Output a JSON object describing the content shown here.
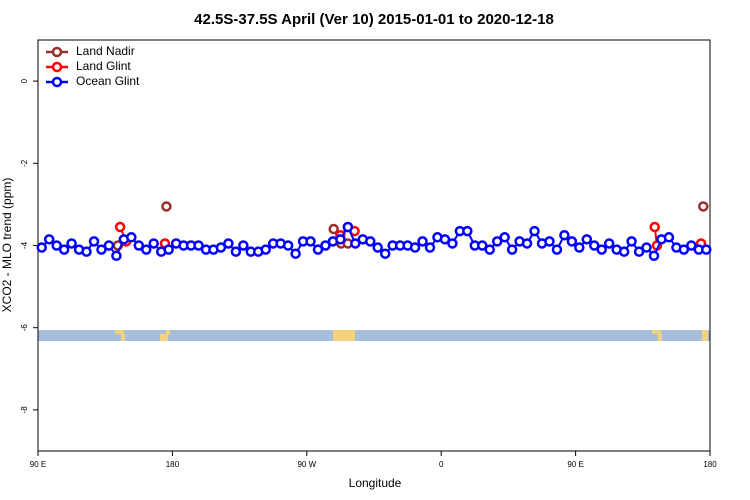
{
  "chart_data": {
    "type": "line",
    "title": "42.5S-37.5S April (Ver 10)   2015-01-01 to 2020-12-18",
    "x_label": "Longitude",
    "y_label": "XCO2 - MLO trend (ppm)",
    "xlim": [
      90,
      540
    ],
    "ylim": [
      -9,
      1
    ],
    "xticks": [
      {
        "value": 90,
        "label": "90 E"
      },
      {
        "value": 180,
        "label": "180"
      },
      {
        "value": 270,
        "label": "90 W"
      },
      {
        "value": 360,
        "label": "0"
      },
      {
        "value": 450,
        "label": "90 E"
      },
      {
        "value": 540,
        "label": "180"
      }
    ],
    "yticks": [
      0,
      -2,
      -4,
      -6,
      -8
    ],
    "legend": "top-left",
    "series": [
      {
        "name": "Land Nadir",
        "color": "#9b2d2d",
        "x": [
          143.5,
          176,
          288,
          293,
          297.5,
          535.5
        ],
        "values": [
          -4.0,
          -3.05,
          -3.6,
          -3.95,
          -3.95,
          -3.05
        ]
      },
      {
        "name": "Land Glint",
        "color": "#ff0000",
        "x": [
          145,
          149,
          175,
          292.5,
          297.5,
          302,
          503,
          504.5,
          534
        ],
        "values": [
          -3.55,
          -3.9,
          -3.95,
          -3.75,
          -3.55,
          -3.65,
          -3.55,
          -4.0,
          -3.95
        ]
      },
      {
        "name": "Ocean Glint",
        "color": "#0000ff",
        "x": [
          92.5,
          97.5,
          102.5,
          107.5,
          112.5,
          117.5,
          122.5,
          127.5,
          132.5,
          137.5,
          142.5,
          147.5,
          152.5,
          157.5,
          162.5,
          167.5,
          172.5,
          177.5,
          182.5,
          187.5,
          192.5,
          197.5,
          202.5,
          207.5,
          212.5,
          217.5,
          222.5,
          227.5,
          232.5,
          237.5,
          242.5,
          247.5,
          252.5,
          257.5,
          262.5,
          267.5,
          272.5,
          277.5,
          282.5,
          287.5,
          292.5,
          297.5,
          302.5,
          307.5,
          312.5,
          317.5,
          322.5,
          327.5,
          332.5,
          337.5,
          342.5,
          347.5,
          352.5,
          357.5,
          362.5,
          367.5,
          372.5,
          377.5,
          382.5,
          387.5,
          392.5,
          397.5,
          402.5,
          407.5,
          412.5,
          417.5,
          422.5,
          427.5,
          432.5,
          437.5,
          442.5,
          447.5,
          452.5,
          457.5,
          462.5,
          467.5,
          472.5,
          477.5,
          482.5,
          487.5,
          492.5,
          497.5,
          502.5,
          507.5,
          512.5,
          517.5,
          522.5,
          527.5,
          532.5,
          537.5
        ],
        "values": [
          -4.05,
          -3.85,
          -4.0,
          -4.1,
          -3.95,
          -4.1,
          -4.15,
          -3.9,
          -4.1,
          -4.0,
          -4.25,
          -3.85,
          -3.8,
          -4.0,
          -4.1,
          -3.95,
          -4.15,
          -4.1,
          -3.95,
          -4.0,
          -4.0,
          -4.0,
          -4.1,
          -4.1,
          -4.05,
          -3.95,
          -4.15,
          -4.0,
          -4.15,
          -4.15,
          -4.1,
          -3.95,
          -3.95,
          -4.0,
          -4.2,
          -3.9,
          -3.9,
          -4.1,
          -4.0,
          -3.9,
          -3.85,
          -3.55,
          -3.95,
          -3.85,
          -3.9,
          -4.05,
          -4.2,
          -4.0,
          -4.0,
          -4.0,
          -4.05,
          -3.9,
          -4.05,
          -3.8,
          -3.85,
          -3.95,
          -3.65,
          -3.65,
          -4.0,
          -4.0,
          -4.1,
          -3.9,
          -3.8,
          -4.1,
          -3.9,
          -3.95,
          -3.65,
          -3.95,
          -3.9,
          -4.1,
          -3.75,
          -3.9,
          -4.05,
          -3.85,
          -4.0,
          -4.1,
          -3.95,
          -4.1,
          -4.15,
          -3.9,
          -4.15,
          -4.05,
          -4.25,
          -3.85,
          -3.8,
          -4.05,
          -4.1,
          -4.0,
          -4.1,
          -4.1
        ]
      }
    ]
  }
}
